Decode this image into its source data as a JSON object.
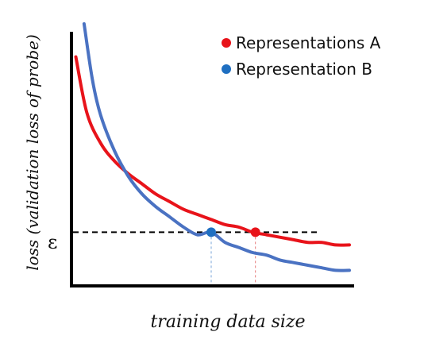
{
  "chart_data": {
    "type": "line",
    "xlabel": "training data size",
    "ylabel": "loss (validation loss of probe)",
    "threshold_label": "ε",
    "grid": false,
    "legend_position": "top-right",
    "series": [
      {
        "name": "Representations A",
        "color": "#e8131a",
        "marker_x": 0.66,
        "x": [
          0.01,
          0.05,
          0.1,
          0.15,
          0.2,
          0.25,
          0.3,
          0.35,
          0.4,
          0.45,
          0.5,
          0.55,
          0.6,
          0.65,
          0.7,
          0.75,
          0.8,
          0.85,
          0.9,
          0.95,
          1.0
        ],
        "values": [
          0.87,
          0.65,
          0.53,
          0.46,
          0.41,
          0.37,
          0.33,
          0.3,
          0.27,
          0.25,
          0.23,
          0.21,
          0.2,
          0.18,
          0.17,
          0.16,
          0.15,
          0.14,
          0.14,
          0.13,
          0.13
        ]
      },
      {
        "name": "Representation B",
        "color": "#4a72c2",
        "marker_x": 0.5,
        "x": [
          0.04,
          0.07,
          0.1,
          0.15,
          0.2,
          0.25,
          0.3,
          0.35,
          0.4,
          0.45,
          0.5,
          0.55,
          0.6,
          0.65,
          0.7,
          0.75,
          0.8,
          0.85,
          0.9,
          0.95,
          1.0
        ],
        "values": [
          1.0,
          0.78,
          0.64,
          0.5,
          0.4,
          0.33,
          0.28,
          0.24,
          0.2,
          0.17,
          0.18,
          0.14,
          0.12,
          0.1,
          0.09,
          0.07,
          0.06,
          0.05,
          0.04,
          0.03,
          0.03
        ]
      }
    ],
    "threshold_y": 0.18,
    "xlim": [
      0,
      1
    ],
    "ylim": [
      0,
      1
    ]
  },
  "colors": {
    "axis": "#000000",
    "threshold_line": "#000000",
    "marker_A": "#e8131a",
    "marker_B": "#1f6fc1",
    "drop_A": "#e67a7a",
    "drop_B": "#7aa6d8"
  }
}
